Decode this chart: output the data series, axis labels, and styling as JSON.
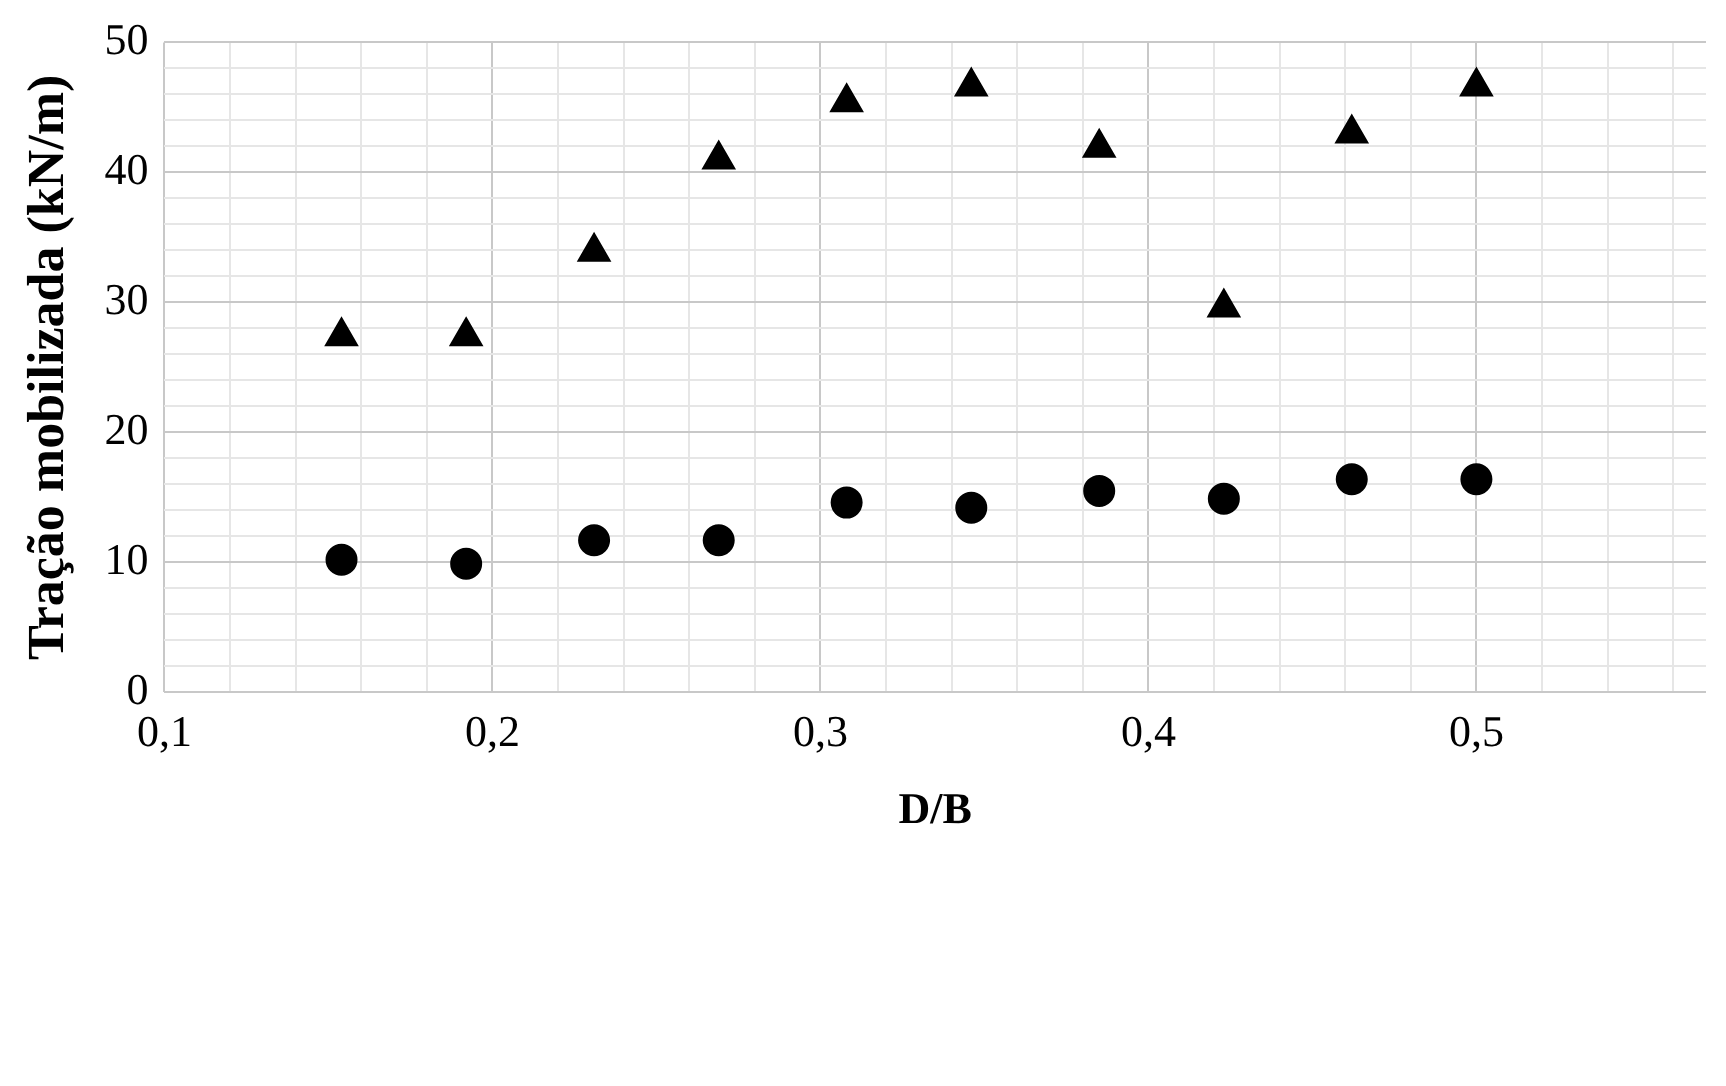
{
  "chart_data": {
    "type": "scatter",
    "xlabel": "D/B",
    "ylabel": "Tração mobilizada (kN/m)",
    "x": [
      0.154,
      0.192,
      0.231,
      0.269,
      0.308,
      0.346,
      0.385,
      0.423,
      0.462,
      0.5
    ],
    "series": [
      {
        "color": "#000000",
        "marker": "triangle",
        "values": [
          27.4,
          27.4,
          33.9,
          41,
          45.4,
          46.6,
          41.9,
          29.6,
          43,
          46.6
        ]
      },
      {
        "color": "#000000",
        "marker": "circle",
        "values": [
          10.2,
          9.9,
          11.7,
          11.7,
          14.6,
          14.2,
          15.5,
          14.9,
          16.4,
          16.4
        ]
      }
    ],
    "xlim": [
      0.1,
      0.57
    ],
    "ylim": [
      0,
      50
    ],
    "xticks": [
      {
        "value": 0.1,
        "label": "0,1"
      },
      {
        "value": 0.2,
        "label": "0,2"
      },
      {
        "value": 0.3,
        "label": "0,3"
      },
      {
        "value": 0.4,
        "label": "0,4"
      },
      {
        "value": 0.5,
        "label": "0,5"
      }
    ],
    "yticks": [
      0,
      10,
      20,
      30,
      40,
      50
    ],
    "grid": true
  }
}
